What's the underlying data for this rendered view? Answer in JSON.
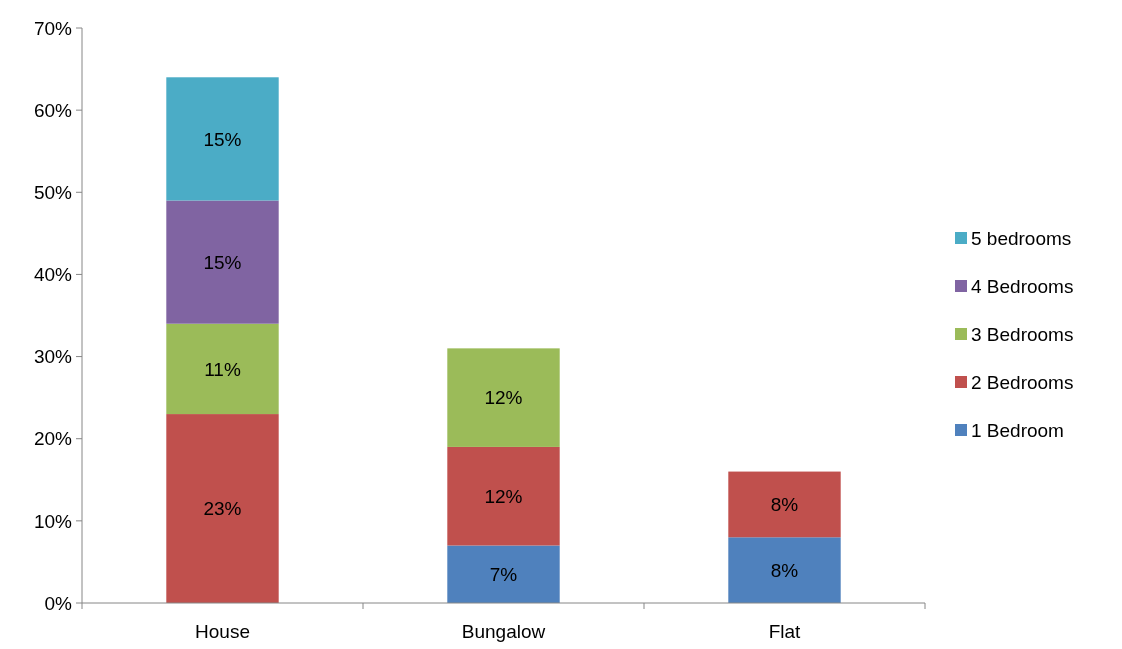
{
  "chart_data": {
    "type": "bar",
    "stacked": true,
    "categories": [
      "House",
      "Bungalow",
      "Flat"
    ],
    "series": [
      {
        "name": "1 Bedroom",
        "color": "#4f81bd",
        "values": [
          null,
          7,
          8
        ],
        "value_labels": [
          null,
          "7%",
          "8%"
        ]
      },
      {
        "name": "2 Bedrooms",
        "color": "#c0504d",
        "values": [
          23,
          12,
          8
        ],
        "value_labels": [
          "23%",
          "12%",
          "8%"
        ]
      },
      {
        "name": "3 Bedrooms",
        "color": "#9bbb59",
        "values": [
          11,
          12,
          null
        ],
        "value_labels": [
          "11%",
          "12%",
          null
        ]
      },
      {
        "name": "4 Bedrooms",
        "color": "#8064a2",
        "values": [
          15,
          null,
          null
        ],
        "value_labels": [
          "15%",
          null,
          null
        ]
      },
      {
        "name": "5 bedrooms",
        "color": "#4bacc6",
        "values": [
          15,
          null,
          null
        ],
        "value_labels": [
          "15%",
          null,
          null
        ]
      }
    ],
    "ylim": [
      0,
      70
    ],
    "yticks": [
      {
        "value": 0,
        "label": "0%"
      },
      {
        "value": 10,
        "label": "10%"
      },
      {
        "value": 20,
        "label": "20%"
      },
      {
        "value": 30,
        "label": "30%"
      },
      {
        "value": 40,
        "label": "40%"
      },
      {
        "value": 50,
        "label": "50%"
      },
      {
        "value": 60,
        "label": "60%"
      },
      {
        "value": 70,
        "label": "70%"
      }
    ],
    "grid": false,
    "legend": "right"
  }
}
